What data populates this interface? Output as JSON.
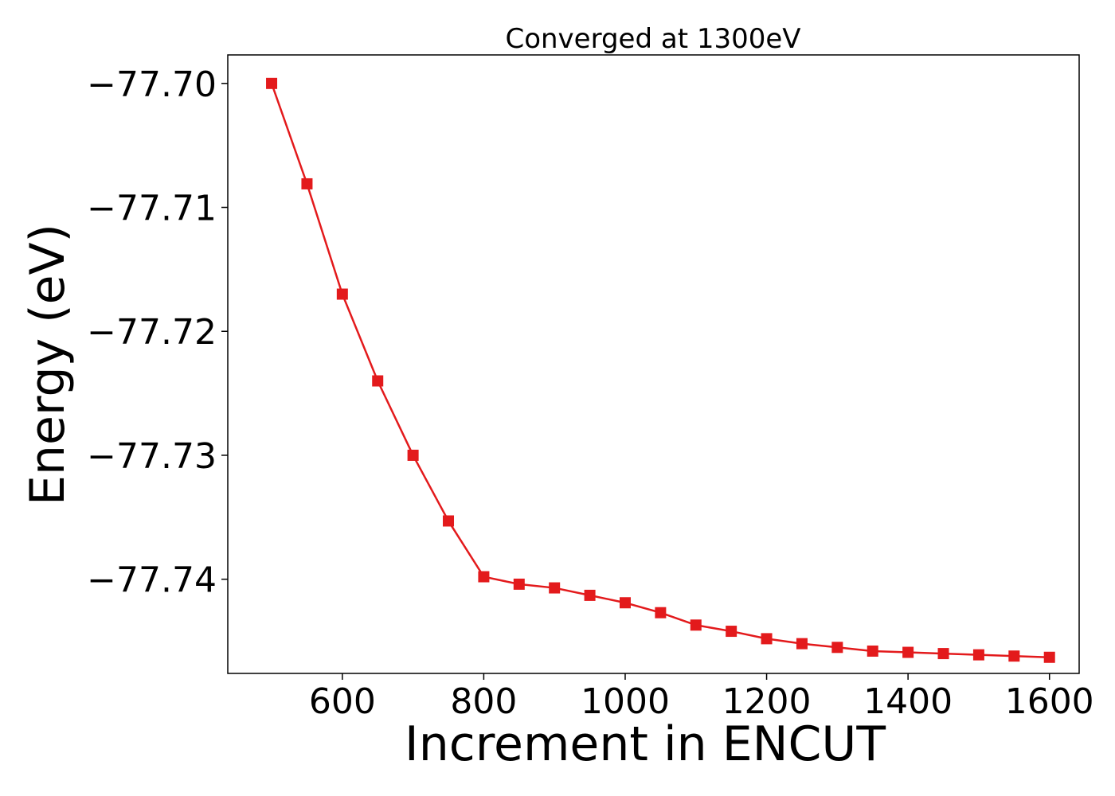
{
  "chart_data": {
    "type": "line",
    "title": "Converged at 1300eV",
    "xlabel": "Increment in ENCUT",
    "ylabel": "Energy (eV)",
    "xlim": [
      438,
      1642
    ],
    "ylim": [
      -77.7476,
      -77.6977
    ],
    "xticks": [
      600,
      800,
      1000,
      1200,
      1400,
      1600
    ],
    "xtick_labels": [
      "600",
      "800",
      "1000",
      "1200",
      "1400",
      "1600"
    ],
    "yticks": [
      -77.7,
      -77.71,
      -77.72,
      -77.73,
      -77.74
    ],
    "ytick_labels": [
      "−77.70",
      "−77.71",
      "−77.72",
      "−77.73",
      "−77.74"
    ],
    "grid": false,
    "legend": "none",
    "series": [
      {
        "color": "#e31a1c",
        "marker": "square",
        "x": [
          500,
          550,
          600,
          650,
          700,
          750,
          800,
          850,
          900,
          950,
          1000,
          1050,
          1100,
          1150,
          1200,
          1250,
          1300,
          1350,
          1400,
          1450,
          1500,
          1550,
          1600
        ],
        "y": [
          -77.7,
          -77.7081,
          -77.717,
          -77.724,
          -77.73,
          -77.7353,
          -77.7398,
          -77.7404,
          -77.7407,
          -77.7413,
          -77.7419,
          -77.7427,
          -77.7437,
          -77.7442,
          -77.7448,
          -77.7452,
          -77.7455,
          -77.7458,
          -77.7459,
          -77.746,
          -77.7461,
          -77.7462,
          -77.7463
        ]
      }
    ]
  }
}
